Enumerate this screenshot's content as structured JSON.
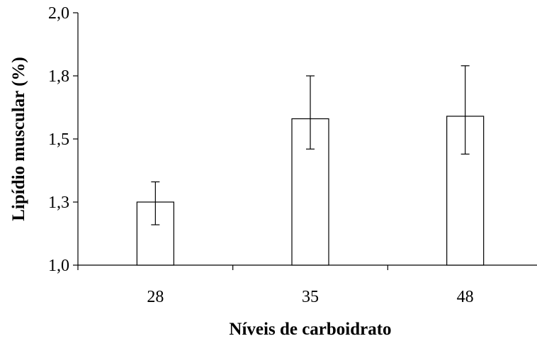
{
  "chart_data": {
    "type": "bar",
    "title": "",
    "xlabel": "Níveis de carboidrato",
    "ylabel": "Lipídio muscular (%)",
    "categories": [
      "28",
      "35",
      "48"
    ],
    "values": [
      1.25,
      1.58,
      1.59
    ],
    "error_low": [
      1.16,
      1.46,
      1.44
    ],
    "error_high": [
      1.33,
      1.75,
      1.79
    ],
    "ylim": [
      1.0,
      2.0
    ],
    "yticks": [
      1.0,
      1.25,
      1.5,
      1.75,
      2.0
    ],
    "ytick_labels": [
      "1,0",
      "1,3",
      "1,5",
      "1,8",
      "2,0"
    ],
    "grid": false,
    "legend": "none",
    "colors": {
      "bar_fill": "#ffffff",
      "bar_stroke": "#000000",
      "axis": "#000000"
    }
  }
}
